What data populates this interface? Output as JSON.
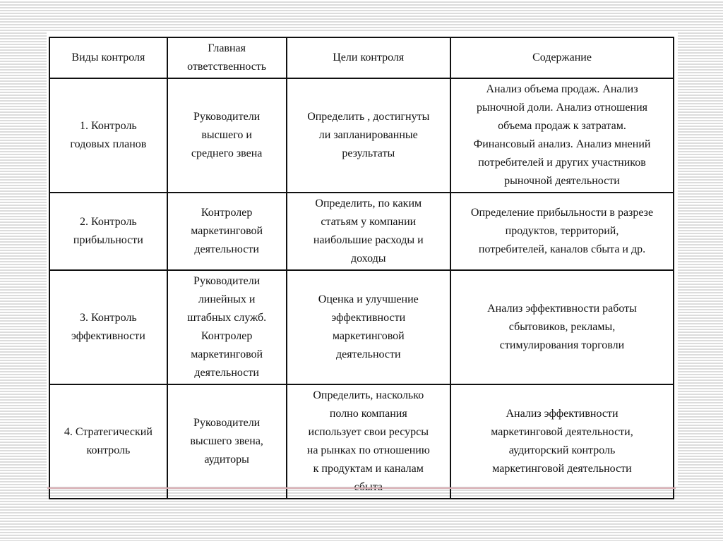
{
  "table": {
    "headers": [
      [
        "Виды контроля"
      ],
      [
        "Главная",
        "ответственность"
      ],
      [
        "Цели контроля"
      ],
      [
        "Содержание"
      ]
    ],
    "rows": [
      [
        [
          "1. Контроль",
          "годовых планов"
        ],
        [
          "Руководители",
          "высшего и",
          "среднего звена"
        ],
        [
          "Определить , достигнуты",
          "ли запланированные",
          "результаты"
        ],
        [
          "Анализ объема продаж. Анализ",
          "рыночной доли. Анализ отношения",
          "объема продаж к затратам.",
          "Финансовый анализ. Анализ мнений",
          "потребителей и других участников",
          "рыночной деятельности"
        ]
      ],
      [
        [
          "2. Контроль",
          "прибыльности"
        ],
        [
          "Контролер",
          "маркетинговой",
          "деятельности"
        ],
        [
          "Определить, по каким",
          "статьям у компании",
          "наибольшие расходы и",
          "доходы"
        ],
        [
          "Определение прибыльности в разрезе",
          "продуктов, территорий,",
          "потребителей, каналов сбыта и др."
        ]
      ],
      [
        [
          "3. Контроль",
          "эффективности"
        ],
        [
          "Руководители",
          "линейных и",
          "штабных служб.",
          "Контролер",
          "маркетинговой",
          "деятельности"
        ],
        [
          "Оценка и улучшение",
          "эффективности",
          "маркетинговой",
          "деятельности"
        ],
        [
          "Анализ эффективности работы",
          "сбытовиков, рекламы,",
          "стимулирования торговли"
        ]
      ],
      [
        [
          "4. Стратегический",
          "контроль"
        ],
        [
          "Руководители",
          "высшего звена,",
          "аудиторы"
        ],
        [
          "Определить, насколько",
          "полно компания",
          "использует свои ресурсы",
          "на рынках по отношению",
          "к продуктам и каналам",
          "сбыта"
        ],
        [
          "Анализ эффективности",
          "маркетинговой деятельности,",
          "аудиторский контроль",
          "маркетинговой деятельности"
        ]
      ]
    ]
  }
}
